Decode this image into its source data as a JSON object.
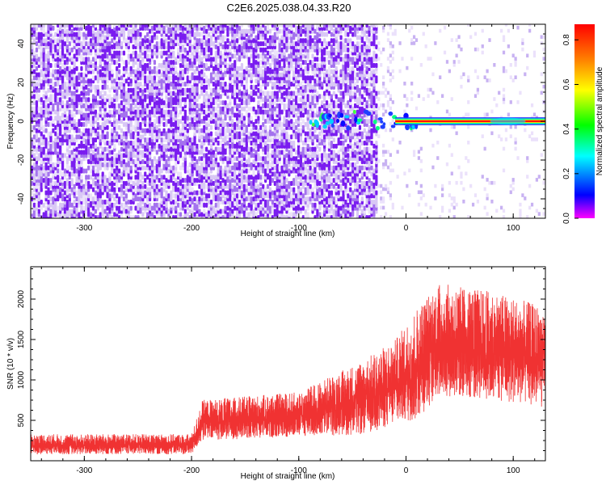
{
  "title": "C2E6.2025.038.04.33.R20",
  "colors": {
    "spectrogram_base": "#8a2be2",
    "spectrogram_light": "#d9c8f5",
    "snr_line": "#f03232",
    "colorbar_stops": [
      "#ff00ff",
      "#0000ff",
      "#00ffff",
      "#00ff00",
      "#ffff00",
      "#ff7f00",
      "#ff0000"
    ]
  },
  "chart_data": [
    {
      "type": "heatmap",
      "title": "C2E6.2025.038.04.33.R20",
      "xlabel": "Height of straight line (km)",
      "ylabel": "Frequency (Hz)",
      "xlim": [
        -350,
        130
      ],
      "ylim": [
        -50,
        50
      ],
      "x_ticks": [
        -300,
        -200,
        -100,
        0,
        100
      ],
      "x_tick_labels": [
        "-300",
        "-200",
        "-100",
        "0",
        "100"
      ],
      "y_ticks": [
        -40,
        -20,
        0,
        20,
        40
      ],
      "y_tick_labels": [
        "-40",
        "-20",
        "0",
        "20",
        "40"
      ],
      "colorbar": {
        "label": "Normalized spectral amplitude",
        "range": [
          0,
          0.87
        ],
        "ticks": [
          0.0,
          0.2,
          0.4,
          0.6,
          0.8
        ],
        "tick_labels": [
          "0.0",
          "0.2",
          "0.4",
          "0.6",
          "0.8"
        ]
      },
      "regions": [
        {
          "x_range": [
            -350,
            -27
          ],
          "description_level": 0.12
        },
        {
          "x_range": [
            -27,
            130
          ],
          "description_level": 0.02
        }
      ],
      "line_signal": {
        "x_range": [
          -90,
          130
        ],
        "frequency": 0,
        "amplitude": 0.85
      }
    },
    {
      "type": "line",
      "xlabel": "Height of straight line (km)",
      "ylabel": "SNR (10 * v/v)",
      "xlim": [
        -350,
        130
      ],
      "ylim": [
        0,
        2400
      ],
      "x_ticks": [
        -300,
        -200,
        -100,
        0,
        100
      ],
      "x_tick_labels": [
        "-300",
        "-200",
        "-100",
        "0",
        "100"
      ],
      "y_ticks": [
        500,
        1000,
        1500,
        2000
      ],
      "y_tick_labels": [
        "500",
        "1000",
        "1500",
        "2000"
      ],
      "envelope": [
        {
          "x": -350,
          "low": 80,
          "high": 330
        },
        {
          "x": -200,
          "low": 80,
          "high": 330
        },
        {
          "x": -190,
          "low": 250,
          "high": 750
        },
        {
          "x": -100,
          "low": 300,
          "high": 850
        },
        {
          "x": -40,
          "low": 320,
          "high": 1250
        },
        {
          "x": -10,
          "low": 450,
          "high": 1500
        },
        {
          "x": 10,
          "low": 500,
          "high": 1900
        },
        {
          "x": 30,
          "low": 800,
          "high": 2200
        },
        {
          "x": 80,
          "low": 750,
          "high": 2100
        },
        {
          "x": 130,
          "low": 650,
          "high": 1900
        }
      ]
    }
  ]
}
